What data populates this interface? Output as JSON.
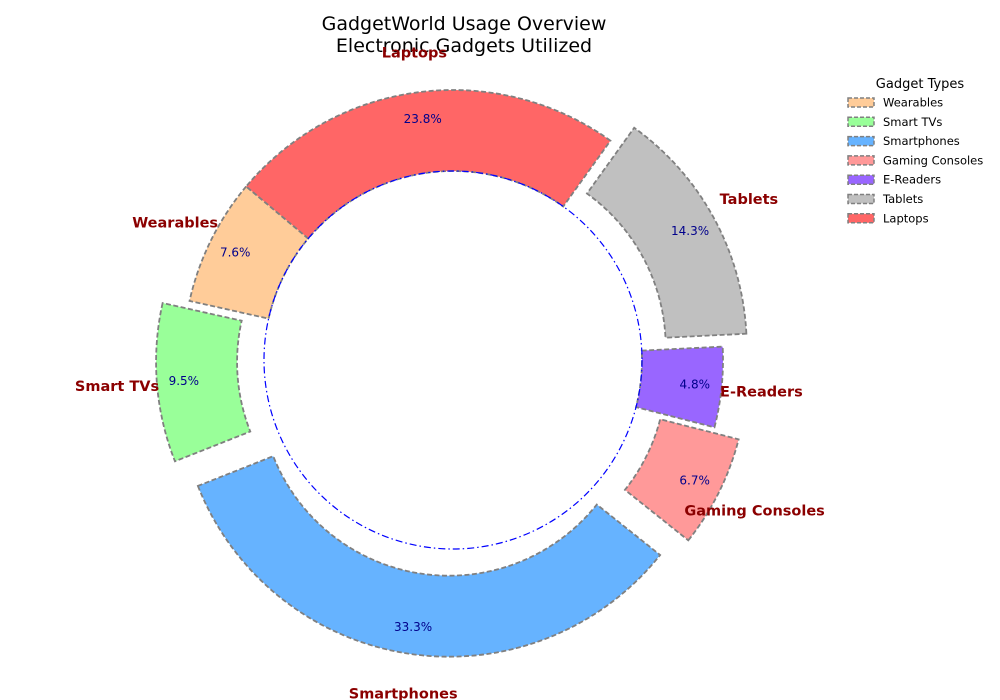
{
  "chart_data": {
    "type": "pie",
    "variant": "donut",
    "title": "GadgetWorld Usage Overview",
    "subtitle": "Electronic Gadgets Utilized",
    "categories": [
      "Wearables",
      "Smart TVs",
      "Smartphones",
      "Gaming Consoles",
      "E-Readers",
      "Tablets",
      "Laptops"
    ],
    "values": [
      7.6,
      9.5,
      33.3,
      6.7,
      4.8,
      14.3,
      23.8
    ],
    "percent_labels": [
      "7.6%",
      "9.5%",
      "33.3%",
      "6.7%",
      "4.8%",
      "14.3%",
      "23.8%"
    ],
    "colors": [
      "#ffcc99",
      "#99ff99",
      "#66b3ff",
      "#ff9999",
      "#9966ff",
      "#c0c0c0",
      "#ff6666"
    ],
    "exploded": [
      false,
      true,
      true,
      true,
      false,
      true,
      false
    ],
    "start_angle_deg": 140,
    "direction": "counterclockwise",
    "legend": {
      "title": "Gadget Types",
      "placement": "top-right",
      "entries": [
        "Wearables",
        "Smart TVs",
        "Smartphones",
        "Gaming Consoles",
        "E-Readers",
        "Tablets",
        "Laptops"
      ]
    }
  }
}
